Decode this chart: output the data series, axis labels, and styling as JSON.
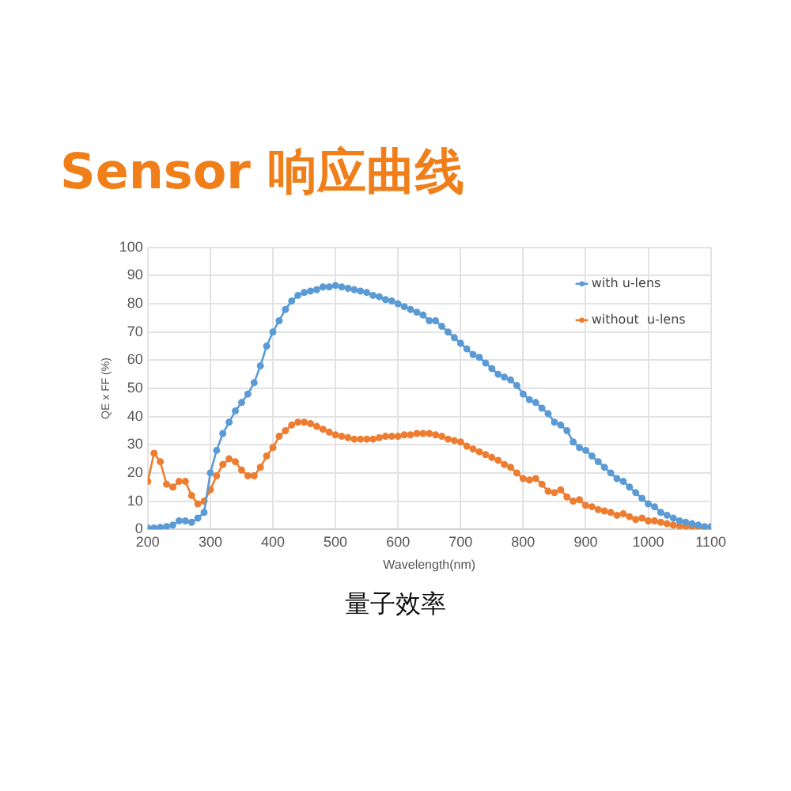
{
  "chart_data": {
    "type": "line",
    "title": "Sensor 响应曲线",
    "xlabel": "Wavelength(nm)",
    "ylabel": "QE x FF (%)",
    "annotations": [
      "量子效率"
    ],
    "x": [
      200,
      210,
      220,
      230,
      240,
      250,
      260,
      270,
      280,
      290,
      300,
      310,
      320,
      330,
      340,
      350,
      360,
      370,
      380,
      390,
      400,
      410,
      420,
      430,
      440,
      450,
      460,
      470,
      480,
      490,
      500,
      510,
      520,
      530,
      540,
      550,
      560,
      570,
      580,
      590,
      600,
      610,
      620,
      630,
      640,
      650,
      660,
      670,
      680,
      690,
      700,
      710,
      720,
      730,
      740,
      750,
      760,
      770,
      780,
      790,
      800,
      810,
      820,
      830,
      840,
      850,
      860,
      870,
      880,
      890,
      900,
      910,
      920,
      930,
      940,
      950,
      960,
      970,
      980,
      990,
      1000,
      1010,
      1020,
      1030,
      1040,
      1050,
      1060,
      1070,
      1080,
      1090,
      1100
    ],
    "series": [
      {
        "name": "with u-lens",
        "color": "#5b9bd5",
        "values": [
          0.5,
          0.5,
          0.7,
          1,
          1.5,
          3,
          3,
          2.5,
          4,
          6,
          20,
          28,
          34,
          38,
          42,
          45,
          48,
          52,
          58,
          65,
          70,
          74,
          78,
          81,
          83,
          84,
          84.5,
          85,
          86,
          86,
          86.5,
          86,
          85.5,
          85,
          84.5,
          84,
          83,
          82.5,
          81.5,
          81,
          80,
          79,
          78,
          77,
          76,
          74,
          74,
          72,
          70,
          68,
          66,
          64,
          62,
          61,
          59,
          57,
          55,
          54,
          53,
          51,
          48,
          46,
          45,
          43,
          41,
          38,
          37,
          35,
          31,
          29,
          28,
          26,
          24,
          22,
          20,
          18,
          17,
          15,
          13,
          11,
          9,
          8,
          6,
          5,
          4,
          3,
          2.5,
          2,
          1.5,
          1,
          1
        ]
      },
      {
        "name": "without  u-lens",
        "color": "#ed7d31",
        "values": [
          17,
          27,
          24,
          16,
          15,
          17,
          17,
          12,
          9,
          10,
          14,
          19,
          23,
          25,
          24,
          21,
          19,
          19,
          22,
          26,
          29,
          33,
          35,
          37,
          38,
          38,
          37.5,
          36.5,
          35.5,
          34.5,
          33.5,
          33,
          32.5,
          32,
          32,
          32,
          32,
          32.5,
          33,
          33,
          33,
          33.5,
          33.5,
          34,
          34,
          34,
          33.5,
          33,
          32,
          31.5,
          31,
          29.5,
          28.5,
          27.5,
          26.5,
          25.5,
          24.5,
          23,
          22,
          20,
          18,
          17.5,
          18,
          16,
          13.5,
          13,
          14,
          11.5,
          10,
          10.5,
          8.5,
          8,
          7,
          6.5,
          6,
          5,
          5.5,
          4.5,
          3.5,
          4,
          3,
          3,
          2.5,
          2,
          1.5,
          1.2,
          1,
          1,
          0.8,
          0.7,
          0.6
        ]
      }
    ],
    "xlim": [
      200,
      1100
    ],
    "xticks": [
      200,
      300,
      400,
      500,
      600,
      700,
      800,
      900,
      1000,
      1100
    ],
    "ylim": [
      0,
      100
    ],
    "yticks": [
      0,
      10,
      20,
      30,
      40,
      50,
      60,
      70,
      80,
      90,
      100
    ],
    "grid": true,
    "legend": "top right",
    "marker": "circle",
    "line_style": "solid"
  }
}
